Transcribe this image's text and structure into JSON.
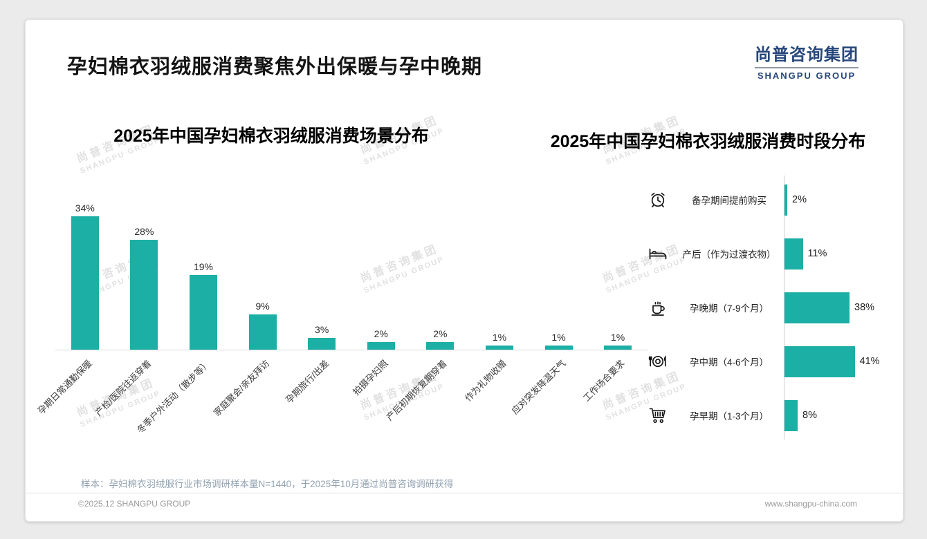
{
  "page": {
    "title": "孕妇棉衣羽绒服消费聚焦外出保暖与孕中晚期",
    "logo": {
      "cn": "尚普咨询集团",
      "en": "SHANGPU GROUP"
    },
    "watermark": {
      "cn": "尚普咨询集团",
      "en": "SHANGPU GROUP"
    },
    "footnote": "样本：孕妇棉衣羽绒服行业市场调研样本量N=1440，于2025年10月通过尚普咨询调研获得",
    "footer": {
      "left": "©2025.12 SHANGPU GROUP",
      "right": "www.shangpu-china.com"
    }
  },
  "colors": {
    "accent": "#1CAFA6",
    "logo_navy": "#27477A"
  },
  "chart_data": [
    {
      "type": "bar",
      "orientation": "vertical",
      "title": "2025年中国孕妇棉衣羽绒服消费场景分布",
      "unit": "%",
      "categories": [
        "孕期日常通勤保暖",
        "产检/医院往返穿着",
        "冬季户外活动（散步等）",
        "家庭聚会/亲友拜访",
        "孕期旅行/出差",
        "拍摄孕妇照",
        "产后初期恢复期穿着",
        "作为礼物收赠",
        "应对突发降温天气",
        "工作场合要求"
      ],
      "values": [
        34,
        28,
        19,
        9,
        3,
        2,
        2,
        1,
        1,
        1
      ],
      "ylim": [
        0,
        40
      ],
      "grid": false,
      "legend": false,
      "value_labels": "above-bars"
    },
    {
      "type": "bar",
      "orientation": "horizontal",
      "title": "2025年中国孕妇棉衣羽绒服消费时段分布",
      "unit": "%",
      "categories": [
        "备孕期间提前购买",
        "产后（作为过渡衣物）",
        "孕晚期（7-9个月）",
        "孕中期（4-6个月）",
        "孕早期（1-3个月）"
      ],
      "values": [
        2,
        11,
        38,
        41,
        8
      ],
      "icons": [
        "alarm-clock",
        "bed",
        "coffee-cup",
        "tableware",
        "shopping-cart"
      ],
      "xlim": [
        0,
        45
      ],
      "grid": false,
      "legend": false,
      "value_labels": "right-of-bars"
    }
  ]
}
